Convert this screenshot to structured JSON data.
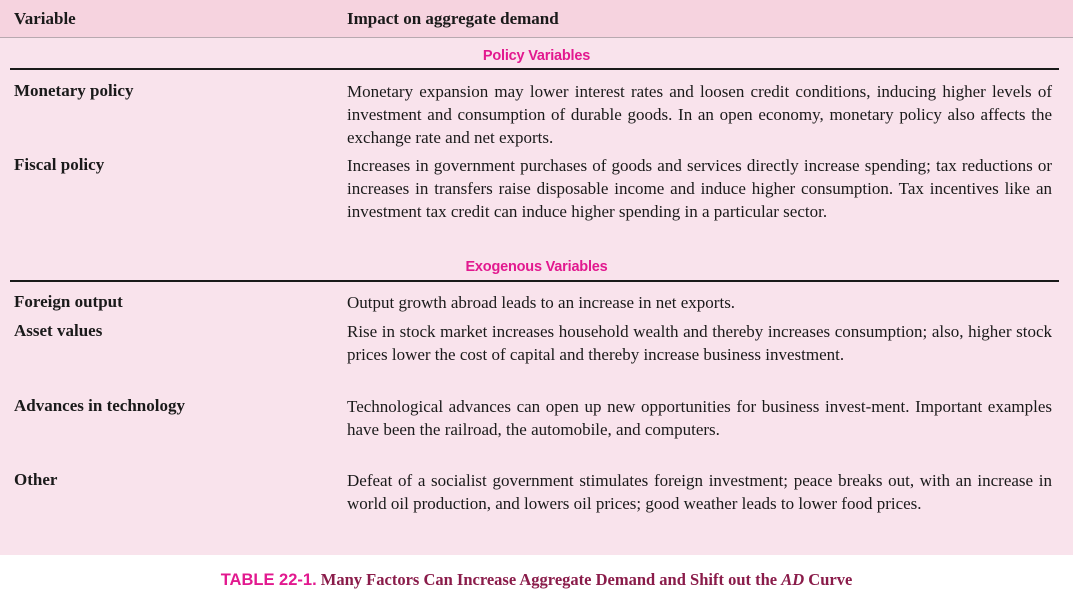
{
  "header": {
    "variable_label": "Variable",
    "impact_label": "Impact on aggregate demand"
  },
  "sections": [
    {
      "heading": "Policy Variables",
      "rows": [
        {
          "variable": "Monetary policy",
          "impact": "Monetary expansion may lower interest rates and loosen credit conditions, inducing higher levels of investment and consumption of durable goods. In an open economy, monetary policy also affects the exchange rate and net exports."
        },
        {
          "variable": "Fiscal policy",
          "impact": "Increases in government purchases of goods and services directly increase spending; tax reductions or increases in transfers raise disposable income and induce higher consumption. Tax incentives like an investment tax credit can induce higher spending in a particular sector."
        }
      ]
    },
    {
      "heading": "Exogenous Variables",
      "rows": [
        {
          "variable": "Foreign output",
          "impact": "Output growth abroad leads to an increase in net exports."
        },
        {
          "variable": "Asset values",
          "impact": "Rise in stock market increases household wealth and thereby increases consumption; also, higher stock prices lower the cost of capital and thereby increase business investment."
        },
        {
          "variable": "Advances in technology",
          "impact": "Technological advances can open up new opportunities for business invest-ment. Important examples have been the railroad, the automobile, and computers."
        },
        {
          "variable": "Other",
          "impact": "Defeat of a socialist government stimulates foreign investment; peace breaks out, with an increase in world oil production, and lowers oil prices; good weather leads to lower food prices."
        }
      ]
    }
  ],
  "caption": {
    "label": "TABLE 22-1.",
    "text_before": "Many Factors Can Increase Aggregate Demand and Shift out the",
    "emphasis": "AD",
    "text_after": "Curve"
  },
  "colors": {
    "panel_background": "#f9e3ec",
    "header_background": "#f6d3df",
    "accent_magenta": "#e2198f",
    "caption_text": "#8a1c4a"
  }
}
